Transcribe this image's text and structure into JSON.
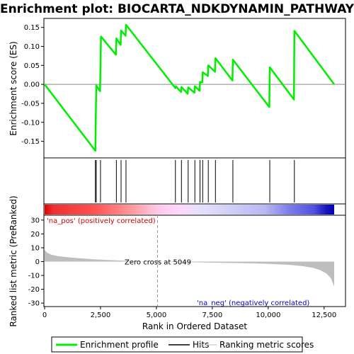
{
  "chart_data": {
    "type": "line",
    "title": "Enrichment plot: BIOCARTA_NDKDYNAMIN_PATHWAY",
    "x_range": [
      0,
      13000
    ],
    "x_ticks": [
      0,
      2500,
      5000,
      7500,
      10000,
      12500
    ],
    "x_tick_labels": [
      "0",
      "2,500",
      "5,000",
      "7,500",
      "10,000",
      "12,500"
    ],
    "xlabel": "Rank in Ordered Dataset",
    "panels": {
      "enrichment": {
        "ylabel": "Enrichment score (ES)",
        "y_range": [
          -0.19,
          0.17
        ],
        "y_ticks": [
          0.15,
          0.1,
          0.05,
          0.0,
          -0.05,
          -0.1,
          -0.15
        ],
        "y_tick_labels": [
          "0.15",
          "0.10",
          "0.05",
          "0.00",
          "-0.05",
          "-0.10",
          "-0.15"
        ],
        "series": [
          {
            "name": "Enrichment profile",
            "color": "#00ee00",
            "x": [
              0,
              2270,
              2290,
              2310,
              2480,
              2500,
              2520,
              3190,
              3210,
              3400,
              3420,
              3620,
              3640,
              5850,
              5870,
              6100,
              6120,
              6400,
              6420,
              6700,
              6720,
              6930,
              6950,
              7050,
              7070,
              7300,
              7320,
              7620,
              7640,
              8400,
              8420,
              10050,
              10070,
              11150,
              11170,
              12950
            ],
            "y": [
              0.0,
              -0.175,
              -0.088,
              -0.003,
              -0.018,
              0.055,
              0.126,
              0.078,
              0.121,
              0.104,
              0.142,
              0.128,
              0.157,
              -0.01,
              -0.005,
              -0.02,
              -0.007,
              -0.025,
              -0.008,
              -0.022,
              -0.005,
              -0.017,
              0.006,
              0.005,
              0.032,
              0.022,
              0.05,
              0.033,
              0.069,
              0.01,
              0.065,
              -0.06,
              0.045,
              -0.04,
              0.141,
              0.0
            ]
          }
        ]
      },
      "hits": {
        "positions": [
          2270,
          2310,
          2500,
          3210,
          3420,
          3640,
          5850,
          6120,
          6420,
          6720,
          6950,
          7070,
          7320,
          7640,
          8420,
          10070,
          11170
        ]
      },
      "ranked_metric": {
        "ylabel": "Ranked list metric (PreRanked)",
        "y_range": [
          -32,
          33
        ],
        "y_ticks": [
          30,
          20,
          10,
          0,
          -10,
          -20,
          -30
        ],
        "y_tick_labels": [
          "30",
          "20",
          "10",
          "0",
          "-10",
          "-20",
          "-30"
        ],
        "zero_cross": 5049,
        "zero_cross_label": "Zero cross at 5049",
        "pos_label": "'na_pos' (positively correlated)",
        "neg_label": "'na_neg' (negatively correlated)",
        "curve_x": [
          0,
          100,
          300,
          600,
          1000,
          1500,
          2000,
          2500,
          3000,
          3500,
          4000,
          4500,
          5049,
          6000,
          7000,
          8000,
          9000,
          10000,
          11000,
          11500,
          12000,
          12300,
          12600,
          12800,
          12950,
          13000
        ],
        "curve_y": [
          8.5,
          6.5,
          5.0,
          4.0,
          3.2,
          2.5,
          1.9,
          1.4,
          1.0,
          0.7,
          0.4,
          0.2,
          0.0,
          -0.3,
          -0.6,
          -0.9,
          -1.2,
          -1.6,
          -2.4,
          -3.2,
          -4.5,
          -6.0,
          -8.5,
          -12.0,
          -18.0,
          -30.0
        ]
      }
    },
    "legend": [
      "Enrichment profile",
      "Hits",
      "Ranking metric scores"
    ],
    "legend_placement": "bottom"
  },
  "colors": {
    "profile": "#00ee00",
    "hits": "#000000",
    "metric_fill": "#bebebe",
    "pos_text": "#cc0000",
    "neg_text": "#0000cc",
    "gradient": [
      "#e00000",
      "#ff5050",
      "#ffbebe",
      "#ffe0ff",
      "#d8d8f8",
      "#9999ee",
      "#4040e0",
      "#0000b0"
    ]
  }
}
